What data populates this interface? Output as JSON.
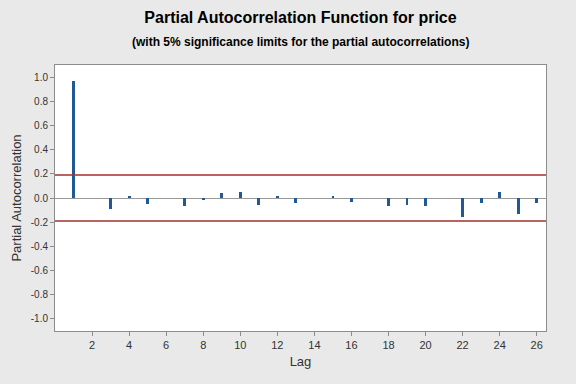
{
  "chart_data": {
    "type": "bar",
    "title": "Partial Autocorrelation Function for price",
    "subtitle": "(with 5% significance limits for the partial autocorrelations)",
    "x_label": "Lag",
    "y_label": "Partial Autocorrelation",
    "x": [
      1,
      2,
      3,
      4,
      5,
      6,
      7,
      8,
      9,
      10,
      11,
      12,
      13,
      14,
      15,
      16,
      17,
      18,
      19,
      20,
      21,
      22,
      23,
      24,
      25,
      26
    ],
    "values": [
      0.97,
      0.0,
      -0.09,
      0.01,
      -0.05,
      0.0,
      -0.07,
      -0.02,
      0.04,
      0.05,
      -0.06,
      0.01,
      -0.04,
      0.0,
      0.01,
      -0.03,
      0.0,
      -0.07,
      -0.06,
      -0.07,
      0.0,
      -0.16,
      -0.04,
      0.05,
      -0.13,
      -0.04
    ],
    "color": "#1f5a96",
    "significance_limits": [
      -0.19,
      0.19
    ],
    "xlim": [
      0,
      26.5
    ],
    "xticks": [
      2,
      4,
      6,
      8,
      10,
      12,
      14,
      16,
      18,
      20,
      22,
      24,
      26
    ],
    "ylim": [
      -1.1,
      1.1
    ],
    "yticks": [
      {
        "value": -1,
        "label": "-1.0"
      },
      {
        "value": -0.8,
        "label": "-0.8"
      },
      {
        "value": -0.6,
        "label": "-0.6"
      },
      {
        "value": -0.4,
        "label": "-0.4"
      },
      {
        "value": -0.2,
        "label": "-0.2"
      },
      {
        "value": 0,
        "label": "0.0"
      },
      {
        "value": 0.2,
        "label": "0.2"
      },
      {
        "value": 0.4,
        "label": "0.4"
      },
      {
        "value": 0.6,
        "label": "0.6"
      },
      {
        "value": 0.8,
        "label": "0.8"
      },
      {
        "value": 1,
        "label": "1.0"
      }
    ],
    "grid": false
  }
}
